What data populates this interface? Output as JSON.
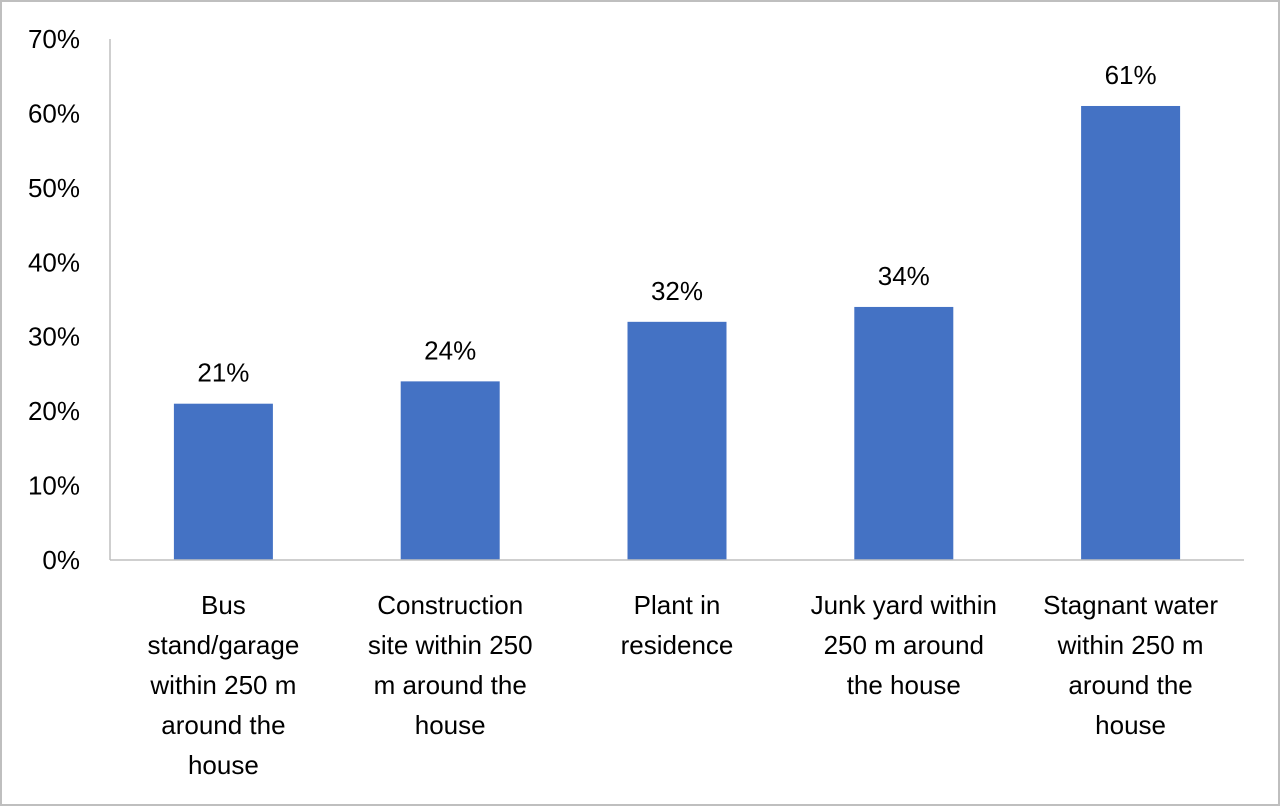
{
  "chart_data": {
    "type": "bar",
    "title": "",
    "xlabel": "",
    "ylabel": "",
    "categories": [
      "Bus stand/garage within 250 m around the house",
      "Construction site within 250 m around the house",
      "Plant in residence",
      "Junk yard within 250 m around the house",
      "Stagnant water within 250 m around the house"
    ],
    "category_lines": [
      [
        "Bus",
        "stand/garage",
        "within 250 m",
        "around the",
        "house"
      ],
      [
        "Construction",
        "site within 250",
        "m around the",
        "house"
      ],
      [
        "Plant in",
        "residence"
      ],
      [
        "Junk yard within",
        "250 m around",
        "the house"
      ],
      [
        "Stagnant water",
        "within 250 m",
        "around the",
        "house"
      ]
    ],
    "values": [
      21,
      24,
      32,
      34,
      61
    ],
    "data_labels": [
      "21%",
      "24%",
      "32%",
      "34%",
      "61%"
    ],
    "unit": "%",
    "ylim": [
      0,
      70
    ],
    "yticks": [
      0,
      10,
      20,
      30,
      40,
      50,
      60,
      70
    ],
    "ytick_labels": [
      "0%",
      "10%",
      "20%",
      "30%",
      "40%",
      "50%",
      "60%",
      "70%"
    ],
    "grid": false,
    "legend": "none",
    "colors": {
      "bar": "#4472C4",
      "axis": "#bfbfbf",
      "text": "#000000"
    }
  }
}
